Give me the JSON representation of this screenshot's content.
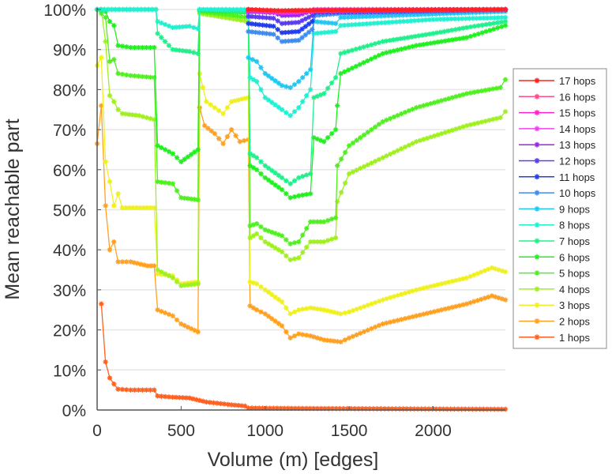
{
  "chart_data": {
    "type": "line",
    "title": "",
    "xlabel": "Volume (m) [edges]",
    "ylabel": "Mean reachable part",
    "xlim": [
      0,
      2430
    ],
    "ylim": [
      0,
      100
    ],
    "x_ticks": [
      0,
      500,
      1000,
      1500,
      2000
    ],
    "x_tick_labels": [
      "0",
      "500",
      "1000",
      "1500",
      "2000"
    ],
    "y_ticks": [
      0,
      10,
      20,
      30,
      40,
      50,
      60,
      70,
      80,
      90,
      100
    ],
    "y_tick_labels": [
      "0%",
      "10%",
      "20%",
      "30%",
      "40%",
      "50%",
      "60%",
      "70%",
      "80%",
      "90%",
      "100%"
    ],
    "grid": "horizontal",
    "legend_position": "right",
    "marker": "asterisk",
    "series": [
      {
        "name": "17 hops",
        "color": "#ff2020",
        "points": [
          [
            900,
            100
          ],
          [
            1100,
            99.7
          ],
          [
            1200,
            99.8
          ],
          [
            2430,
            100
          ]
        ]
      },
      {
        "name": "16 hops",
        "color": "#ff4a8a",
        "points": [
          [
            900,
            100
          ],
          [
            1100,
            99.6
          ],
          [
            1200,
            99.7
          ],
          [
            2430,
            100
          ]
        ]
      },
      {
        "name": "15 hops",
        "color": "#ff20c8",
        "points": [
          [
            900,
            100
          ],
          [
            1100,
            99.4
          ],
          [
            1200,
            99.5
          ],
          [
            2430,
            100
          ]
        ]
      },
      {
        "name": "14 hops",
        "color": "#f040f0",
        "points": [
          [
            900,
            99.8
          ],
          [
            1100,
            99.2
          ],
          [
            1200,
            99.3
          ],
          [
            1290,
            100
          ],
          [
            2430,
            100
          ]
        ]
      },
      {
        "name": "13 hops",
        "color": "#a020f0",
        "points": [
          [
            900,
            99.5
          ],
          [
            1050,
            99.2
          ],
          [
            1100,
            98.5
          ],
          [
            1200,
            98.6
          ],
          [
            1290,
            99.8
          ],
          [
            2430,
            100
          ]
        ]
      },
      {
        "name": "12 hops",
        "color": "#5a3cf0",
        "points": [
          [
            900,
            98.3
          ],
          [
            1050,
            97.8
          ],
          [
            1100,
            96.5
          ],
          [
            1200,
            96.8
          ],
          [
            1280,
            98.5
          ],
          [
            1300,
            99.7
          ],
          [
            2430,
            100
          ]
        ]
      },
      {
        "name": "11 hops",
        "color": "#1f3cf0",
        "points": [
          [
            900,
            96.5
          ],
          [
            1050,
            95.8
          ],
          [
            1100,
            94.2
          ],
          [
            1200,
            94.5
          ],
          [
            1280,
            97
          ],
          [
            1300,
            99.3
          ],
          [
            2430,
            100
          ]
        ]
      },
      {
        "name": "10 hops",
        "color": "#3c8cf0",
        "points": [
          [
            900,
            94.5
          ],
          [
            1050,
            93.8
          ],
          [
            1100,
            92
          ],
          [
            1200,
            92.3
          ],
          [
            1280,
            95
          ],
          [
            1300,
            98.5
          ],
          [
            1450,
            99
          ],
          [
            2430,
            99.8
          ]
        ]
      },
      {
        "name": "9 hops",
        "color": "#20c8f0",
        "points": [
          [
            900,
            88
          ],
          [
            950,
            87
          ],
          [
            1000,
            84
          ],
          [
            1100,
            81
          ],
          [
            1150,
            80.5
          ],
          [
            1200,
            82
          ],
          [
            1270,
            85
          ],
          [
            1290,
            97
          ],
          [
            1420,
            96.5
          ],
          [
            1450,
            98
          ],
          [
            2430,
            99.5
          ]
        ]
      },
      {
        "name": "8 hops",
        "color": "#20f0d0",
        "points": [
          [
            0,
            100
          ],
          [
            350,
            100
          ],
          [
            360,
            97
          ],
          [
            450,
            95.5
          ],
          [
            550,
            95.8
          ],
          [
            600,
            95.2
          ],
          [
            610,
            100
          ],
          [
            900,
            100
          ],
          [
            910,
            83
          ],
          [
            950,
            82
          ],
          [
            1000,
            78
          ],
          [
            1100,
            75
          ],
          [
            1150,
            73.5
          ],
          [
            1200,
            75.5
          ],
          [
            1270,
            80
          ],
          [
            1290,
            94
          ],
          [
            1420,
            94.5
          ],
          [
            1450,
            96
          ],
          [
            2000,
            97.5
          ],
          [
            2430,
            98
          ]
        ]
      },
      {
        "name": "7 hops",
        "color": "#20f08c",
        "points": [
          [
            0,
            100
          ],
          [
            350,
            100
          ],
          [
            360,
            94
          ],
          [
            450,
            90
          ],
          [
            550,
            89.5
          ],
          [
            600,
            89
          ],
          [
            610,
            100
          ],
          [
            900,
            99.5
          ],
          [
            910,
            64
          ],
          [
            950,
            63
          ],
          [
            1000,
            61
          ],
          [
            1100,
            58
          ],
          [
            1150,
            56.5
          ],
          [
            1200,
            58
          ],
          [
            1270,
            59
          ],
          [
            1290,
            78
          ],
          [
            1350,
            79
          ],
          [
            1420,
            83
          ],
          [
            1450,
            89
          ],
          [
            1700,
            92
          ],
          [
            2000,
            94
          ],
          [
            2200,
            95.5
          ],
          [
            2430,
            97
          ]
        ]
      },
      {
        "name": "6 hops",
        "color": "#20f020",
        "points": [
          [
            0,
            100
          ],
          [
            50,
            99.5
          ],
          [
            75,
            97
          ],
          [
            100,
            96
          ],
          [
            125,
            91
          ],
          [
            200,
            90.5
          ],
          [
            340,
            90.5
          ],
          [
            360,
            66
          ],
          [
            450,
            64
          ],
          [
            500,
            62
          ],
          [
            600,
            65
          ],
          [
            610,
            99.8
          ],
          [
            900,
            99.2
          ],
          [
            910,
            61
          ],
          [
            950,
            60
          ],
          [
            1000,
            58
          ],
          [
            1100,
            55
          ],
          [
            1150,
            53
          ],
          [
            1200,
            53.5
          ],
          [
            1270,
            54
          ],
          [
            1290,
            68
          ],
          [
            1350,
            67
          ],
          [
            1420,
            70
          ],
          [
            1430,
            76
          ],
          [
            1450,
            84
          ],
          [
            1700,
            89
          ],
          [
            1900,
            91
          ],
          [
            2200,
            93
          ],
          [
            2430,
            96
          ]
        ]
      },
      {
        "name": "5 hops",
        "color": "#50f020",
        "points": [
          [
            0,
            100
          ],
          [
            50,
            98
          ],
          [
            75,
            87
          ],
          [
            100,
            87.5
          ],
          [
            125,
            84
          ],
          [
            200,
            83.5
          ],
          [
            340,
            83
          ],
          [
            360,
            57
          ],
          [
            450,
            56.5
          ],
          [
            500,
            53
          ],
          [
            600,
            52.5
          ],
          [
            610,
            99.5
          ],
          [
            900,
            98
          ],
          [
            910,
            46
          ],
          [
            950,
            46.5
          ],
          [
            1000,
            45
          ],
          [
            1100,
            43.5
          ],
          [
            1150,
            41.5
          ],
          [
            1200,
            42
          ],
          [
            1270,
            47
          ],
          [
            1350,
            47
          ],
          [
            1420,
            48
          ],
          [
            1430,
            61
          ],
          [
            1500,
            66
          ],
          [
            1700,
            72
          ],
          [
            1900,
            75.5
          ],
          [
            2200,
            79
          ],
          [
            2400,
            80.5
          ],
          [
            2430,
            82.5
          ]
        ]
      },
      {
        "name": "4 hops",
        "color": "#a0f020",
        "points": [
          [
            0,
            100
          ],
          [
            25,
            100
          ],
          [
            50,
            92
          ],
          [
            75,
            78.5
          ],
          [
            100,
            77
          ],
          [
            125,
            75
          ],
          [
            150,
            74
          ],
          [
            250,
            73.5
          ],
          [
            340,
            72.5
          ],
          [
            360,
            35
          ],
          [
            450,
            33
          ],
          [
            500,
            31
          ],
          [
            600,
            31.5
          ],
          [
            610,
            99
          ],
          [
            900,
            97
          ],
          [
            910,
            43
          ],
          [
            950,
            44
          ],
          [
            1000,
            42
          ],
          [
            1100,
            39.5
          ],
          [
            1150,
            37.5
          ],
          [
            1200,
            38
          ],
          [
            1270,
            42
          ],
          [
            1350,
            42
          ],
          [
            1420,
            43
          ],
          [
            1430,
            52
          ],
          [
            1500,
            59
          ],
          [
            1700,
            63
          ],
          [
            1900,
            67
          ],
          [
            2200,
            71
          ],
          [
            2400,
            73
          ],
          [
            2430,
            74.5
          ]
        ]
      },
      {
        "name": "3 hops",
        "color": "#f0f020",
        "points": [
          [
            0,
            86
          ],
          [
            25,
            88
          ],
          [
            50,
            62
          ],
          [
            75,
            57
          ],
          [
            100,
            51
          ],
          [
            125,
            54
          ],
          [
            150,
            50.5
          ],
          [
            340,
            50.5
          ],
          [
            360,
            34
          ],
          [
            450,
            33.5
          ],
          [
            500,
            31.5
          ],
          [
            600,
            32
          ],
          [
            610,
            84
          ],
          [
            650,
            77
          ],
          [
            700,
            75.5
          ],
          [
            750,
            74
          ],
          [
            800,
            77
          ],
          [
            900,
            78
          ],
          [
            910,
            32
          ],
          [
            950,
            31.5
          ],
          [
            1000,
            30
          ],
          [
            1100,
            27
          ],
          [
            1150,
            24
          ],
          [
            1200,
            25
          ],
          [
            1270,
            25.5
          ],
          [
            1350,
            25
          ],
          [
            1450,
            24
          ],
          [
            1500,
            24.5
          ],
          [
            1700,
            27.5
          ],
          [
            1900,
            30
          ],
          [
            2200,
            33
          ],
          [
            2350,
            35.5
          ],
          [
            2430,
            34.5
          ]
        ]
      },
      {
        "name": "2 hops",
        "color": "#ffa020",
        "points": [
          [
            0,
            66.5
          ],
          [
            25,
            76
          ],
          [
            50,
            51
          ],
          [
            75,
            40
          ],
          [
            100,
            42
          ],
          [
            125,
            37
          ],
          [
            200,
            37
          ],
          [
            300,
            36
          ],
          [
            340,
            36
          ],
          [
            360,
            25
          ],
          [
            450,
            23.5
          ],
          [
            500,
            21.5
          ],
          [
            600,
            19.5
          ],
          [
            610,
            75.5
          ],
          [
            640,
            71
          ],
          [
            700,
            69
          ],
          [
            750,
            66.5
          ],
          [
            800,
            70
          ],
          [
            850,
            67
          ],
          [
            900,
            67.5
          ],
          [
            910,
            26
          ],
          [
            950,
            25
          ],
          [
            1000,
            24
          ],
          [
            1100,
            21
          ],
          [
            1150,
            18
          ],
          [
            1200,
            19
          ],
          [
            1270,
            18.5
          ],
          [
            1350,
            17.5
          ],
          [
            1450,
            17
          ],
          [
            1500,
            18
          ],
          [
            1700,
            21.5
          ],
          [
            1900,
            23.5
          ],
          [
            2200,
            26.5
          ],
          [
            2350,
            28.5
          ],
          [
            2430,
            27.5
          ]
        ]
      },
      {
        "name": "1 hops",
        "color": "#ff6020",
        "points": [
          [
            25,
            26.5
          ],
          [
            50,
            12
          ],
          [
            75,
            8
          ],
          [
            100,
            6.5
          ],
          [
            125,
            5.2
          ],
          [
            200,
            5
          ],
          [
            340,
            5
          ],
          [
            360,
            3.5
          ],
          [
            450,
            3.2
          ],
          [
            550,
            3
          ],
          [
            650,
            2
          ],
          [
            800,
            1.3
          ],
          [
            880,
            1
          ],
          [
            900,
            0.5
          ],
          [
            1200,
            0.4
          ],
          [
            1800,
            0.3
          ],
          [
            2430,
            0.2
          ]
        ]
      }
    ]
  }
}
